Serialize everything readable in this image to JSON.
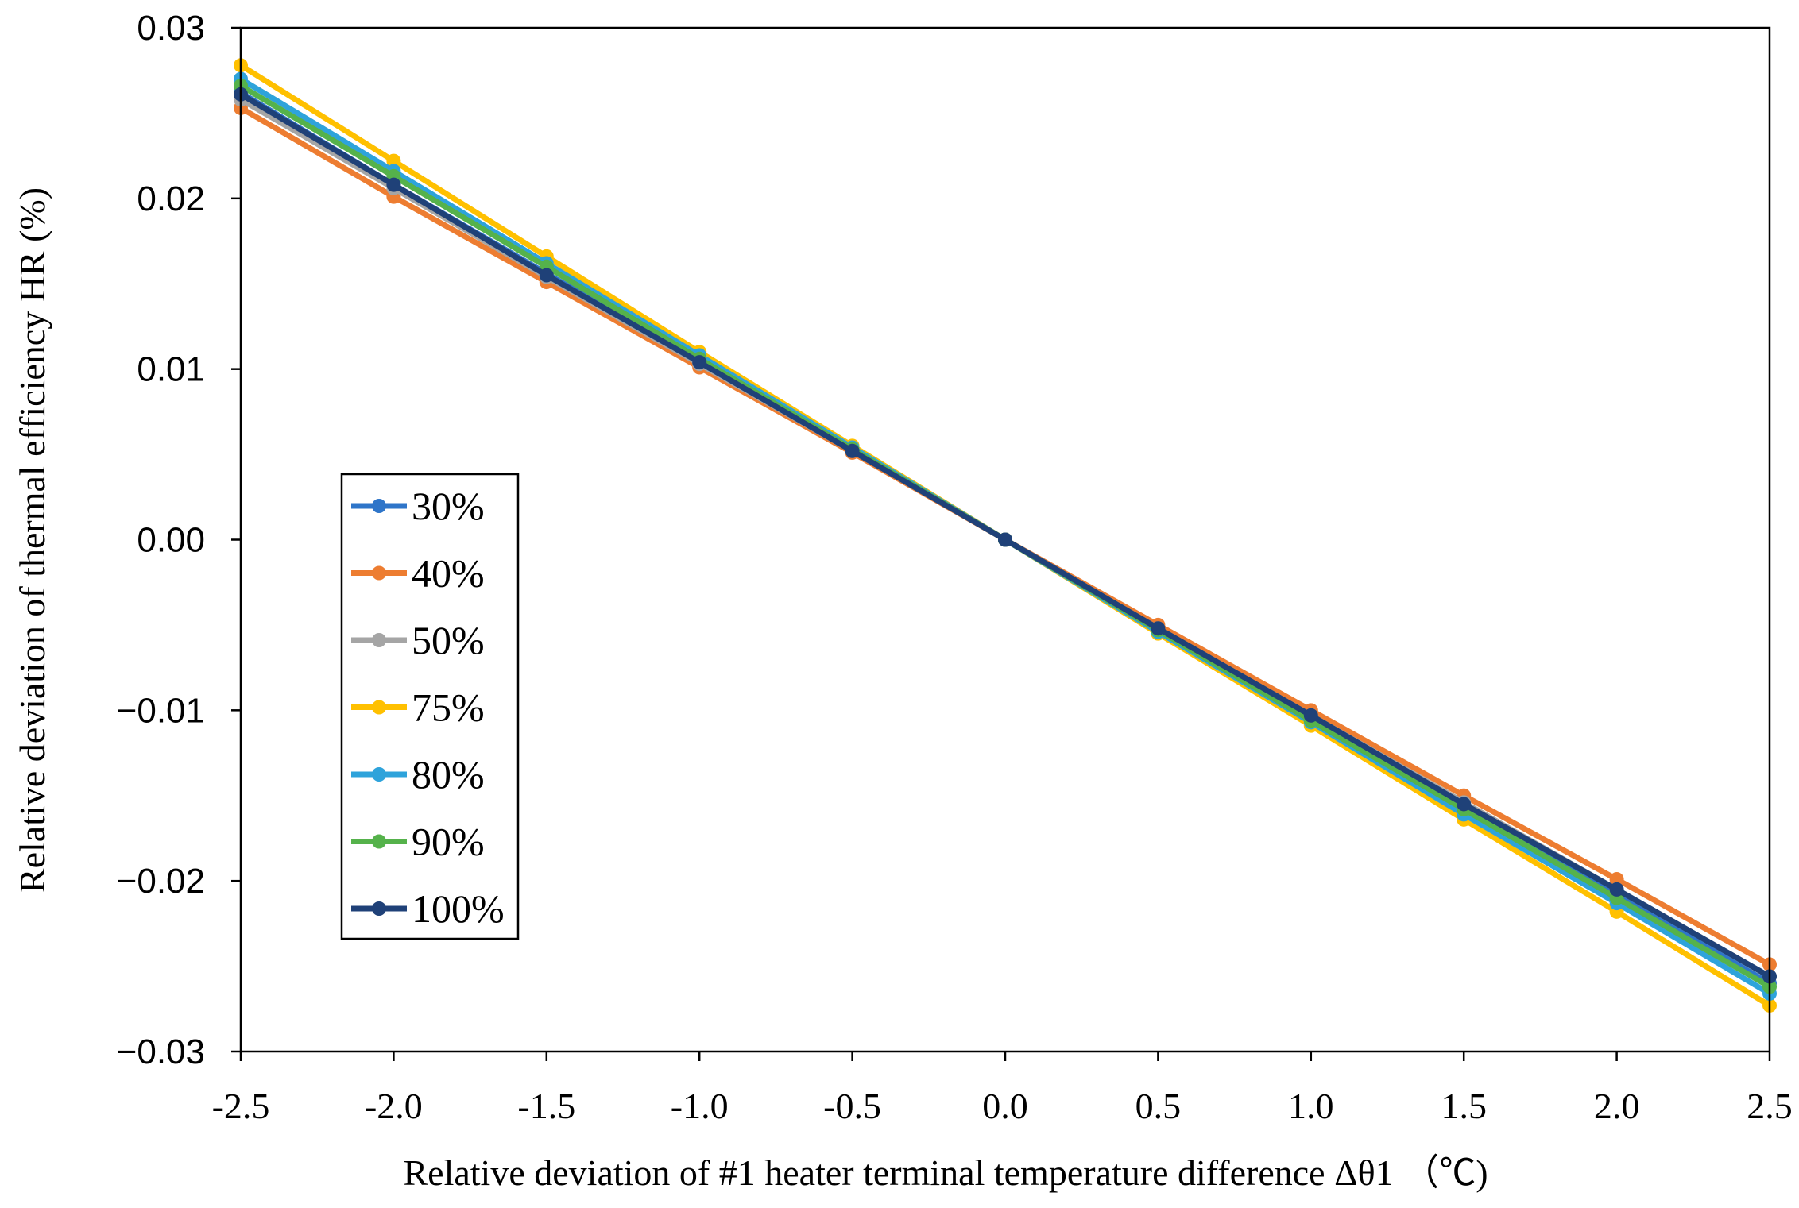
{
  "chart_data": {
    "type": "line",
    "title": "",
    "xlabel": "Relative deviation of #1 heater terminal temperature difference Δθ1 （℃)",
    "ylabel": "Relative deviation of thermal efficiency HR (%)",
    "x": [
      -2.5,
      -2.0,
      -1.5,
      -1.0,
      -0.5,
      0.0,
      0.5,
      1.0,
      1.5,
      2.0,
      2.5
    ],
    "x_tick_labels": [
      "-2.5",
      "-2.0",
      "-1.5",
      "-1.0",
      "-0.5",
      "0.0",
      "0.5",
      "1.0",
      "1.5",
      "2.0",
      "2.5"
    ],
    "y_ticks": [
      0.03,
      0.02,
      0.01,
      0.0,
      -0.01,
      -0.02,
      -0.03
    ],
    "y_tick_labels": [
      "0.03",
      "0.02",
      "0.01",
      "0.00",
      "−0.01",
      "−0.02",
      "−0.03"
    ],
    "xlim": [
      -2.5,
      2.5
    ],
    "ylim": [
      -0.03,
      0.03
    ],
    "grid": false,
    "legend_position": "middle-left",
    "series": [
      {
        "name": "30%",
        "color": "#2E75C9",
        "values": [
          0.0262,
          0.0208,
          0.0156,
          0.0104,
          0.0052,
          0.0,
          -0.0052,
          -0.0104,
          -0.0156,
          -0.0208,
          -0.026
        ]
      },
      {
        "name": "40%",
        "color": "#ED7D31",
        "values": [
          0.0253,
          0.0201,
          0.0151,
          0.0101,
          0.0051,
          0.0,
          -0.005,
          -0.01,
          -0.015,
          -0.0199,
          -0.0249
        ]
      },
      {
        "name": "50%",
        "color": "#A5A5A5",
        "values": [
          0.0258,
          0.0206,
          0.0154,
          0.0103,
          0.0052,
          0.0,
          -0.0052,
          -0.0103,
          -0.0154,
          -0.0205,
          -0.0256
        ]
      },
      {
        "name": "75%",
        "color": "#FFC000",
        "values": [
          0.0278,
          0.0222,
          0.0166,
          0.011,
          0.0055,
          0.0,
          -0.0055,
          -0.0109,
          -0.0164,
          -0.0218,
          -0.0273
        ]
      },
      {
        "name": "80%",
        "color": "#2EA3DB",
        "values": [
          0.027,
          0.0216,
          0.0162,
          0.0108,
          0.0054,
          0.0,
          -0.0054,
          -0.0107,
          -0.0161,
          -0.0213,
          -0.0266
        ]
      },
      {
        "name": "90%",
        "color": "#55B24B",
        "values": [
          0.0266,
          0.0213,
          0.016,
          0.0106,
          0.0053,
          0.0,
          -0.0053,
          -0.0106,
          -0.0158,
          -0.021,
          -0.0262
        ]
      },
      {
        "name": "100%",
        "color": "#1F4178",
        "values": [
          0.0261,
          0.0208,
          0.0155,
          0.0104,
          0.0052,
          0.0,
          -0.0052,
          -0.0103,
          -0.0155,
          -0.0205,
          -0.0256
        ]
      }
    ]
  }
}
